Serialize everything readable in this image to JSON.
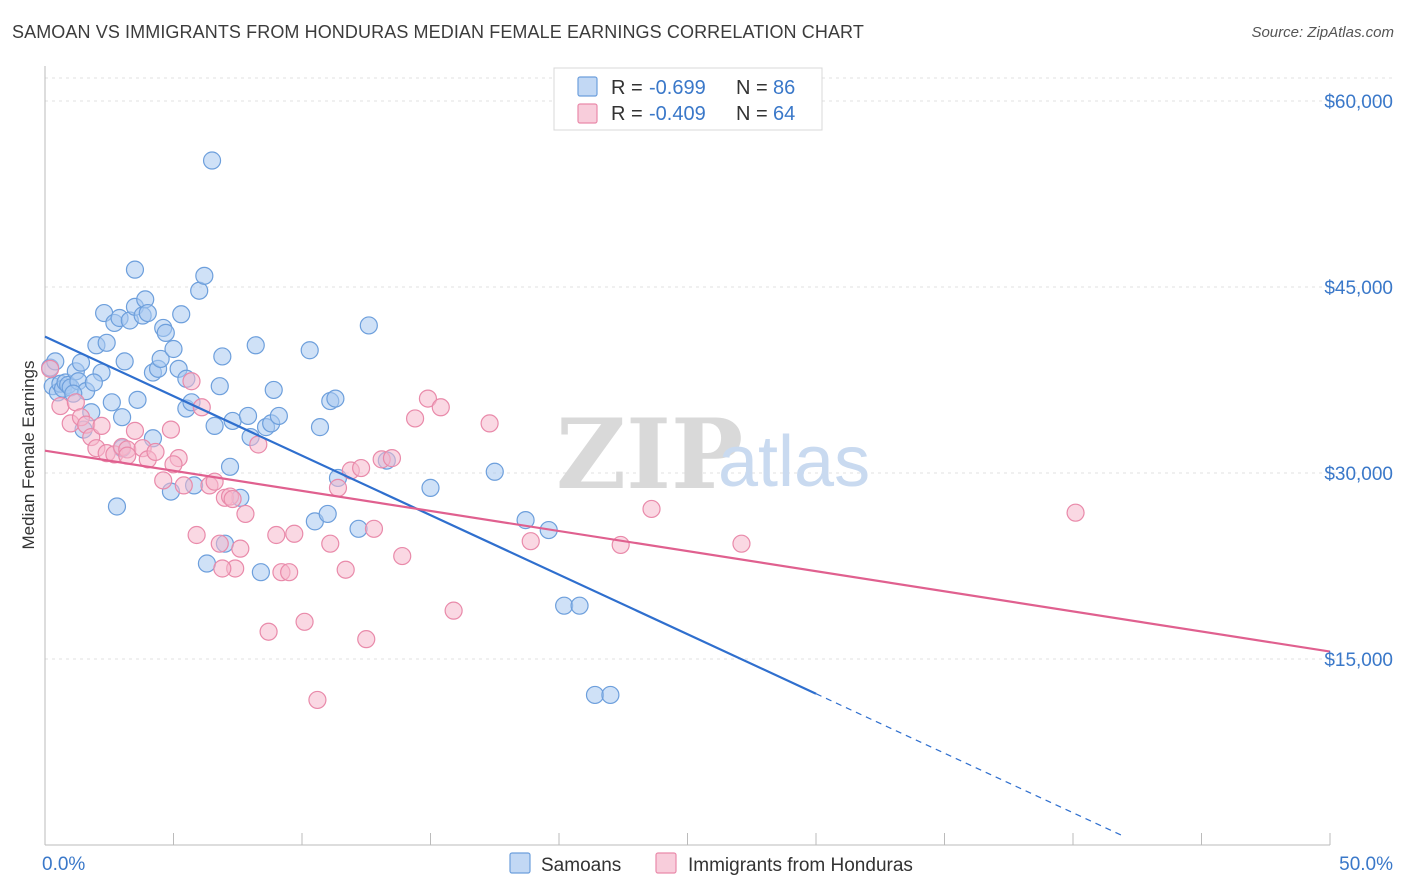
{
  "header": {
    "title": "SAMOAN VS IMMIGRANTS FROM HONDURAS MEDIAN FEMALE EARNINGS CORRELATION CHART",
    "source": "Source: ZipAtlas.com"
  },
  "watermark": {
    "zip": "ZIP",
    "atlas": "atlas"
  },
  "colors": {
    "samoans_fill": "#a8c8f0",
    "samoans_stroke": "#6d9fdc",
    "samoans_line": "#2f6fce",
    "honduras_fill": "#f5b8cc",
    "honduras_stroke": "#e98aaa",
    "honduras_line": "#e0608f",
    "grid": "#e0e0e0",
    "axis_text": "#3a78c9"
  },
  "stats": [
    {
      "r_label": "R =",
      "r_value": "-0.699",
      "n_label": "N =",
      "n_value": "86"
    },
    {
      "r_label": "R =",
      "r_value": "-0.409",
      "n_label": "N =",
      "n_value": "64"
    }
  ],
  "chart_data": {
    "type": "scatter",
    "title": "SAMOAN VS IMMIGRANTS FROM HONDURAS MEDIAN FEMALE EARNINGS CORRELATION CHART",
    "xlabel": "",
    "ylabel": "Median Female Earnings",
    "xlim": [
      0,
      50
    ],
    "ylim": [
      0,
      62500
    ],
    "x_tick_labels": [
      "0.0%",
      "50.0%"
    ],
    "y_ticks": [
      15000,
      30000,
      45000,
      60000
    ],
    "y_tick_labels": [
      "$15,000",
      "$30,000",
      "$45,000",
      "$60,000"
    ],
    "grid": true,
    "legend_position": "bottom-center",
    "series": [
      {
        "name": "Samoans",
        "r": -0.699,
        "n": 86,
        "trend": {
          "x0": 0,
          "y0": 41000,
          "x1": 30,
          "y1": 12200,
          "dash_to_x": 42
        },
        "points": [
          [
            0.2,
            38500
          ],
          [
            0.3,
            37000
          ],
          [
            0.4,
            39000
          ],
          [
            0.5,
            36500
          ],
          [
            0.6,
            37200
          ],
          [
            0.7,
            36800
          ],
          [
            0.8,
            37300
          ],
          [
            0.9,
            37100
          ],
          [
            1.0,
            36900
          ],
          [
            1.2,
            38200
          ],
          [
            1.3,
            37400
          ],
          [
            1.4,
            38900
          ],
          [
            1.6,
            36600
          ],
          [
            1.8,
            34900
          ],
          [
            2.0,
            40300
          ],
          [
            2.2,
            38100
          ],
          [
            2.4,
            40500
          ],
          [
            2.3,
            42900
          ],
          [
            2.7,
            42100
          ],
          [
            2.9,
            42500
          ],
          [
            3.1,
            39000
          ],
          [
            3.3,
            42300
          ],
          [
            3.5,
            43400
          ],
          [
            3.5,
            46400
          ],
          [
            3.6,
            35900
          ],
          [
            3.8,
            42700
          ],
          [
            3.9,
            44000
          ],
          [
            4.0,
            42900
          ],
          [
            4.2,
            38100
          ],
          [
            4.4,
            38400
          ],
          [
            4.5,
            39200
          ],
          [
            4.6,
            41700
          ],
          [
            4.7,
            41300
          ],
          [
            4.9,
            28500
          ],
          [
            5.0,
            40000
          ],
          [
            5.2,
            38400
          ],
          [
            5.3,
            42800
          ],
          [
            5.5,
            35200
          ],
          [
            5.7,
            35700
          ],
          [
            5.8,
            29000
          ],
          [
            6.0,
            44700
          ],
          [
            6.2,
            45900
          ],
          [
            6.6,
            33800
          ],
          [
            6.8,
            37000
          ],
          [
            6.9,
            39400
          ],
          [
            7.0,
            24300
          ],
          [
            7.3,
            34200
          ],
          [
            7.6,
            28000
          ],
          [
            7.9,
            34600
          ],
          [
            8.0,
            32900
          ],
          [
            8.2,
            40300
          ],
          [
            8.4,
            22000
          ],
          [
            8.6,
            33700
          ],
          [
            8.8,
            34000
          ],
          [
            8.9,
            36700
          ],
          [
            9.1,
            34600
          ],
          [
            10.3,
            39900
          ],
          [
            10.5,
            26100
          ],
          [
            10.7,
            33700
          ],
          [
            11.0,
            26700
          ],
          [
            11.1,
            35800
          ],
          [
            11.3,
            36000
          ],
          [
            11.4,
            29600
          ],
          [
            12.2,
            25500
          ],
          [
            12.6,
            41900
          ],
          [
            13.3,
            31000
          ],
          [
            15.0,
            28800
          ],
          [
            17.5,
            30100
          ],
          [
            18.7,
            26200
          ],
          [
            19.6,
            25400
          ],
          [
            20.2,
            19300
          ],
          [
            20.8,
            19300
          ],
          [
            21.4,
            12100
          ],
          [
            22.0,
            12100
          ],
          [
            6.5,
            55200
          ],
          [
            3.0,
            34500
          ],
          [
            1.5,
            33500
          ],
          [
            2.6,
            35700
          ],
          [
            4.2,
            32800
          ],
          [
            3.0,
            32000
          ],
          [
            2.8,
            27300
          ],
          [
            6.3,
            22700
          ],
          [
            7.2,
            30500
          ],
          [
            1.9,
            37300
          ],
          [
            5.5,
            37600
          ],
          [
            1.1,
            36400
          ]
        ]
      },
      {
        "name": "Immigrants from Honduras",
        "r": -0.409,
        "n": 64,
        "trend": {
          "x0": 0,
          "y0": 31800,
          "x1": 50,
          "y1": 15600
        },
        "points": [
          [
            0.2,
            38400
          ],
          [
            0.6,
            35400
          ],
          [
            1.0,
            34000
          ],
          [
            1.2,
            35700
          ],
          [
            1.4,
            34500
          ],
          [
            1.6,
            33900
          ],
          [
            1.8,
            32900
          ],
          [
            2.0,
            32000
          ],
          [
            2.2,
            33800
          ],
          [
            2.4,
            31600
          ],
          [
            2.7,
            31500
          ],
          [
            3.0,
            32100
          ],
          [
            3.2,
            31900
          ],
          [
            3.5,
            33400
          ],
          [
            3.8,
            32000
          ],
          [
            4.0,
            31100
          ],
          [
            4.3,
            31700
          ],
          [
            4.6,
            29400
          ],
          [
            4.9,
            33500
          ],
          [
            5.2,
            31200
          ],
          [
            5.4,
            29000
          ],
          [
            5.7,
            37400
          ],
          [
            5.9,
            25000
          ],
          [
            6.1,
            35300
          ],
          [
            6.4,
            29000
          ],
          [
            6.6,
            29300
          ],
          [
            6.8,
            24300
          ],
          [
            7.0,
            28000
          ],
          [
            7.2,
            28100
          ],
          [
            7.4,
            22300
          ],
          [
            7.6,
            23900
          ],
          [
            7.8,
            26700
          ],
          [
            8.3,
            32300
          ],
          [
            8.7,
            17200
          ],
          [
            9.0,
            25000
          ],
          [
            9.2,
            22000
          ],
          [
            9.5,
            22000
          ],
          [
            9.7,
            25100
          ],
          [
            10.1,
            18000
          ],
          [
            10.6,
            11700
          ],
          [
            11.1,
            24300
          ],
          [
            11.4,
            28800
          ],
          [
            11.7,
            22200
          ],
          [
            11.9,
            30200
          ],
          [
            12.3,
            30400
          ],
          [
            12.5,
            16600
          ],
          [
            12.8,
            25500
          ],
          [
            13.1,
            31100
          ],
          [
            13.5,
            31200
          ],
          [
            13.9,
            23300
          ],
          [
            14.4,
            34400
          ],
          [
            14.9,
            36000
          ],
          [
            15.4,
            35300
          ],
          [
            15.9,
            18900
          ],
          [
            17.3,
            34000
          ],
          [
            18.9,
            24500
          ],
          [
            22.4,
            24200
          ],
          [
            23.6,
            27100
          ],
          [
            27.1,
            24300
          ],
          [
            40.1,
            26800
          ],
          [
            3.2,
            31400
          ],
          [
            6.9,
            22300
          ],
          [
            5.0,
            30700
          ],
          [
            7.3,
            27900
          ]
        ]
      }
    ]
  }
}
